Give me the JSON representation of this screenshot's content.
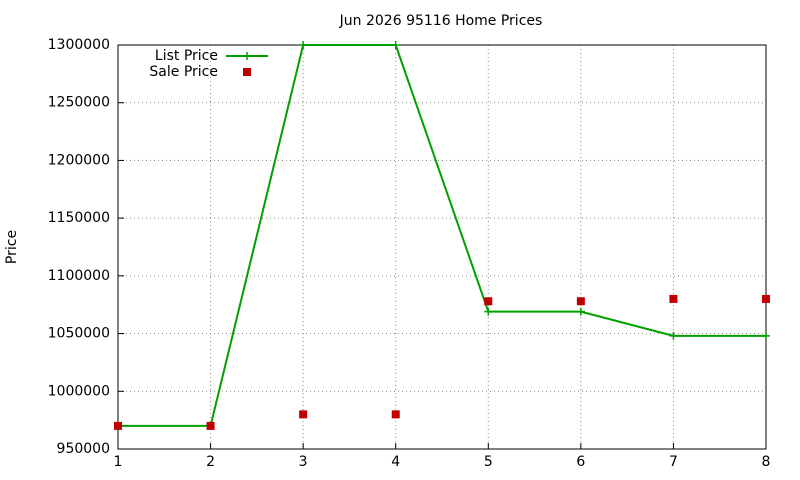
{
  "chart_data": {
    "type": "line",
    "title": "Jun 2026 95116 Home Prices",
    "y_label": "Price",
    "x": [
      1,
      2,
      3,
      4,
      5,
      6,
      7,
      8
    ],
    "series": [
      {
        "name": "List Price",
        "color": "#00a000",
        "mode": "linespoints",
        "values": [
          970000,
          970000,
          1300000,
          1300000,
          1069000,
          1069000,
          1048000,
          1048000
        ]
      },
      {
        "name": "Sale Price",
        "color": "#c00000",
        "mode": "points",
        "values": [
          970000,
          970000,
          980000,
          980000,
          1078000,
          1078000,
          1080000,
          1080000
        ]
      }
    ],
    "xlim": [
      1,
      8
    ],
    "xticks": [
      1,
      2,
      3,
      4,
      5,
      6,
      7,
      8
    ],
    "ylim": [
      950000,
      1300000
    ],
    "yticks": [
      950000,
      1000000,
      1050000,
      1100000,
      1150000,
      1200000,
      1250000,
      1300000
    ],
    "grid": true,
    "legend": "top-left"
  }
}
